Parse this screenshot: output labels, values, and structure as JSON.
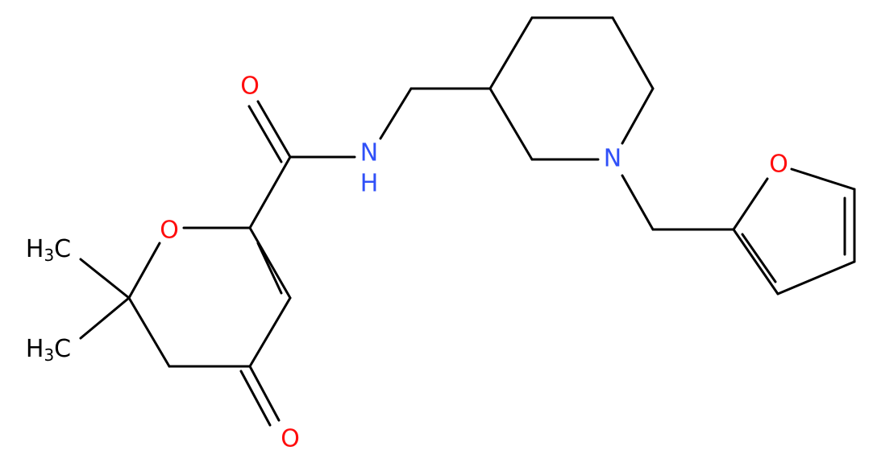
{
  "atoms": [
    {
      "label": "O"
    },
    {
      "label": "O"
    },
    {
      "label": "O"
    },
    {
      "label": "N"
    },
    {
      "label": "H"
    },
    {
      "label": "N"
    },
    {
      "label": "O"
    }
  ],
  "methyls": [
    {
      "h": "H",
      "count": "3",
      "c": "C"
    },
    {
      "h": "H",
      "count": "3",
      "c": "C"
    }
  ]
}
